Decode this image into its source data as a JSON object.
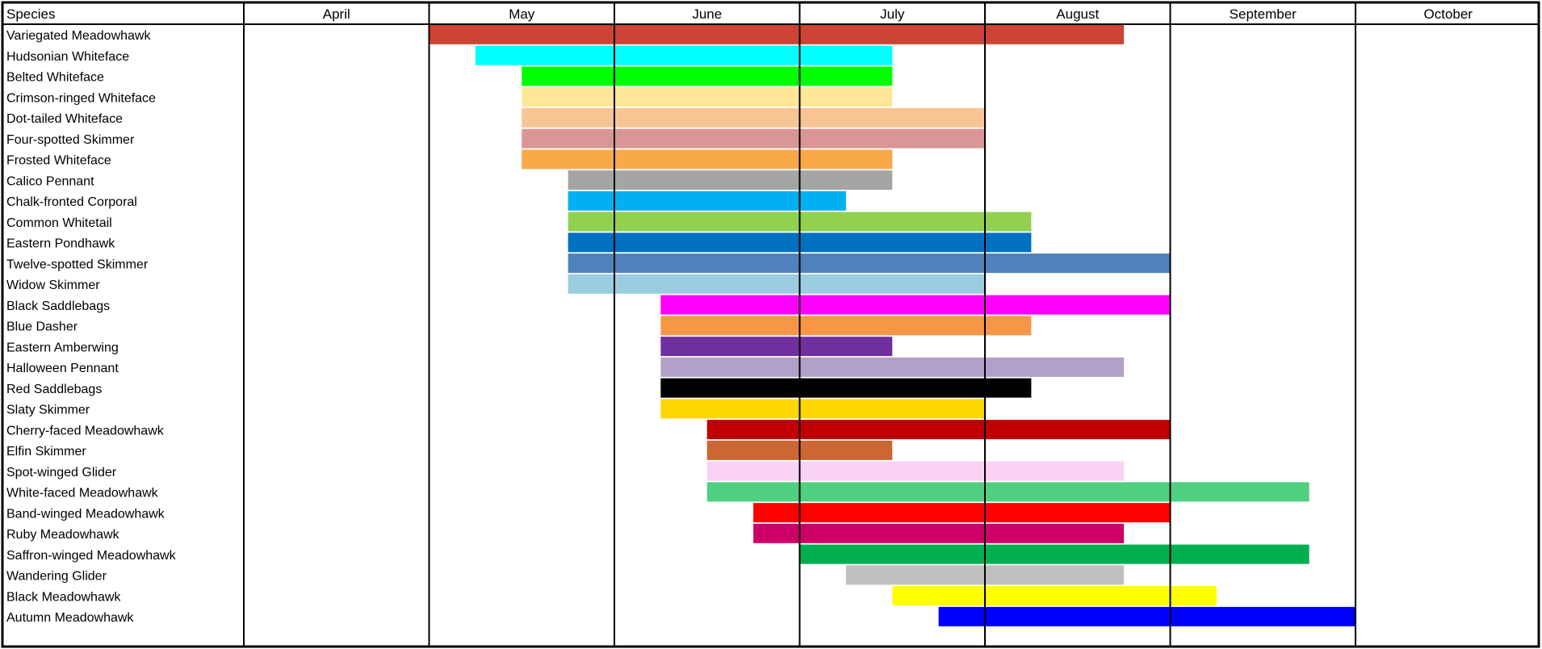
{
  "chart_data": {
    "type": "gantt",
    "corner_label": "Species",
    "months": [
      "April",
      "May",
      "June",
      "July",
      "August",
      "September",
      "October"
    ],
    "bar_units": "months (0 = start of April, 7 = end of October)",
    "grid": true,
    "legend": "none",
    "series": [
      {
        "name": "Variegated Meadowhawk",
        "start": 1.0,
        "end": 4.75,
        "color": "#CC4433"
      },
      {
        "name": "Hudsonian Whiteface",
        "start": 1.25,
        "end": 3.5,
        "color": "#00FFFF"
      },
      {
        "name": "Belted Whiteface",
        "start": 1.5,
        "end": 3.5,
        "color": "#00FF00"
      },
      {
        "name": "Crimson-ringed Whiteface",
        "start": 1.5,
        "end": 3.5,
        "color": "#FFE699"
      },
      {
        "name": "Dot-tailed Whiteface",
        "start": 1.5,
        "end": 4.0,
        "color": "#F8C494"
      },
      {
        "name": "Four-spotted Skimmer",
        "start": 1.5,
        "end": 4.0,
        "color": "#DA9694"
      },
      {
        "name": "Frosted Whiteface",
        "start": 1.5,
        "end": 3.5,
        "color": "#FAA949"
      },
      {
        "name": "Calico Pennant",
        "start": 1.75,
        "end": 3.5,
        "color": "#A5A5A5"
      },
      {
        "name": "Chalk-fronted Corporal",
        "start": 1.75,
        "end": 3.25,
        "color": "#00B0F0"
      },
      {
        "name": "Common Whitetail",
        "start": 1.75,
        "end": 4.25,
        "color": "#92D050"
      },
      {
        "name": "Eastern Pondhawk",
        "start": 1.75,
        "end": 4.25,
        "color": "#0070C0"
      },
      {
        "name": "Twelve-spotted Skimmer",
        "start": 1.75,
        "end": 5.0,
        "color": "#4F81BD"
      },
      {
        "name": "Widow Skimmer",
        "start": 1.75,
        "end": 4.0,
        "color": "#9BCDE0"
      },
      {
        "name": "Black Saddlebags",
        "start": 2.25,
        "end": 5.0,
        "color": "#FF00FF"
      },
      {
        "name": "Blue Dasher",
        "start": 2.25,
        "end": 4.25,
        "color": "#F79646"
      },
      {
        "name": "Eastern Amberwing",
        "start": 2.25,
        "end": 3.5,
        "color": "#7030A0"
      },
      {
        "name": "Halloween Pennant",
        "start": 2.25,
        "end": 4.75,
        "color": "#B1A0C7"
      },
      {
        "name": "Red Saddlebags",
        "start": 2.25,
        "end": 4.25,
        "color": "#000000"
      },
      {
        "name": "Slaty Skimmer",
        "start": 2.25,
        "end": 4.0,
        "color": "#FFD700"
      },
      {
        "name": "Cherry-faced Meadowhawk",
        "start": 2.5,
        "end": 5.0,
        "color": "#C00000"
      },
      {
        "name": "Elfin Skimmer",
        "start": 2.5,
        "end": 3.5,
        "color": "#CC6633"
      },
      {
        "name": "Spot-winged Glider",
        "start": 2.5,
        "end": 4.75,
        "color": "#FAD2F5"
      },
      {
        "name": "White-faced Meadowhawk",
        "start": 2.5,
        "end": 5.75,
        "color": "#4FCF80"
      },
      {
        "name": "Band-winged Meadowhawk",
        "start": 2.75,
        "end": 5.0,
        "color": "#FF0000"
      },
      {
        "name": "Ruby Meadowhawk",
        "start": 2.75,
        "end": 4.75,
        "color": "#CC0066"
      },
      {
        "name": "Saffron-winged Meadowhawk",
        "start": 3.0,
        "end": 5.75,
        "color": "#00B050"
      },
      {
        "name": "Wandering Glider",
        "start": 3.25,
        "end": 4.75,
        "color": "#BFBFBF"
      },
      {
        "name": "Black Meadowhawk",
        "start": 3.5,
        "end": 5.25,
        "color": "#FFFF00"
      },
      {
        "name": "Autumn Meadowhawk",
        "start": 3.75,
        "end": 6.0,
        "color": "#0000FF"
      }
    ]
  }
}
